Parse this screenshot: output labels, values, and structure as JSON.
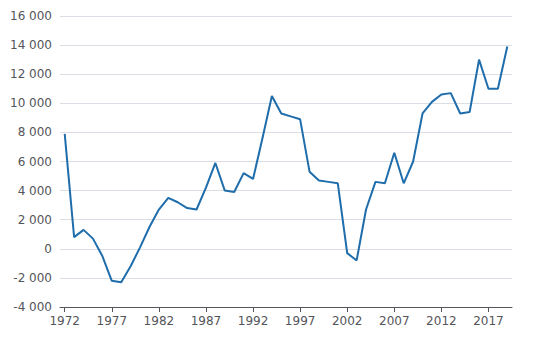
{
  "chart_data": {
    "type": "line",
    "x": [
      1972,
      1973,
      1974,
      1975,
      1976,
      1977,
      1978,
      1979,
      1980,
      1981,
      1982,
      1983,
      1984,
      1985,
      1986,
      1987,
      1988,
      1989,
      1990,
      1991,
      1992,
      1993,
      1994,
      1995,
      1996,
      1997,
      1998,
      1999,
      2000,
      2001,
      2002,
      2003,
      2004,
      2005,
      2006,
      2007,
      2008,
      2009,
      2010,
      2011,
      2012,
      2013,
      2014,
      2015,
      2016,
      2017,
      2018,
      2019
    ],
    "values": [
      7900,
      800,
      1300,
      700,
      -500,
      -2200,
      -2300,
      -1200,
      100,
      1500,
      2700,
      3500,
      3200,
      2800,
      2700,
      4200,
      5900,
      4000,
      3900,
      5200,
      4800,
      7600,
      10500,
      9300,
      9100,
      8900,
      5300,
      4700,
      4600,
      4500,
      -300,
      -800,
      2700,
      4600,
      4500,
      6600,
      4500,
      6000,
      9300,
      10100,
      10600,
      10700,
      9300,
      9400,
      13000,
      11000,
      11000,
      13900
    ],
    "color": "#1f6dab",
    "xlim": [
      1971.5,
      2019.5
    ],
    "xticks": [
      1972,
      1977,
      1982,
      1987,
      1992,
      1997,
      2002,
      2007,
      2012,
      2017
    ],
    "ylim": [
      -4000,
      16000
    ],
    "yticks": [
      {
        "value": -4000,
        "label": "-4 000"
      },
      {
        "value": -2000,
        "label": "-2 000"
      },
      0,
      {
        "value": 2000,
        "label": "2 000"
      },
      {
        "value": 4000,
        "label": "4 000"
      },
      {
        "value": 6000,
        "label": "6 000"
      },
      {
        "value": 8000,
        "label": "8 000"
      },
      {
        "value": 10000,
        "label": "10 000"
      },
      {
        "value": 12000,
        "label": "12 000"
      },
      {
        "value": 14000,
        "label": "14 000"
      },
      {
        "value": 16000,
        "label": "16 000"
      }
    ],
    "grid": true
  }
}
